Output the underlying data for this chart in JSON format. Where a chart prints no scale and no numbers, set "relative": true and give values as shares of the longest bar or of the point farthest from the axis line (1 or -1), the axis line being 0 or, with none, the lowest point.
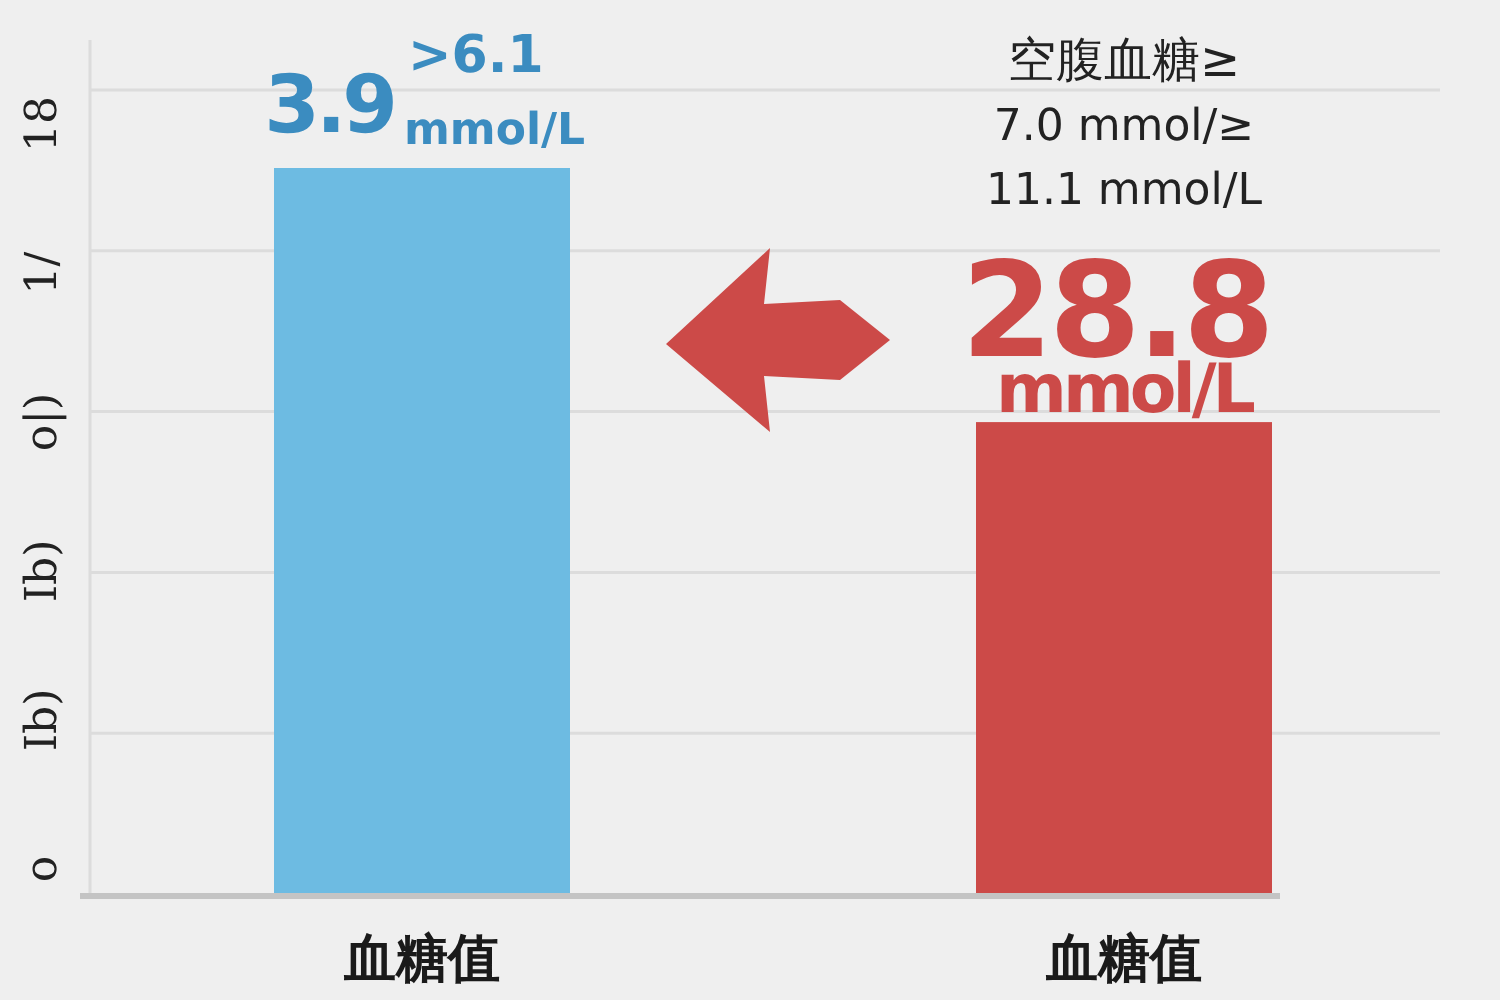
{
  "chart_data": {
    "type": "bar",
    "relative": true,
    "categories": [
      "血糖值",
      "血糖值"
    ],
    "values": [
      1,
      0.65
    ],
    "colors": [
      "#6dbbe2",
      "#cc4a48"
    ],
    "annotations": [
      "3.9",
      ">6.1",
      "mmol/L",
      "空腹血糖≥",
      "7.0 mmol/≥",
      "11.1 mmol/L",
      "28.8",
      "mmol/L",
      "18",
      "1/",
      "o|)",
      "Ib)",
      "Ib)",
      "o"
    ],
    "grid": true
  }
}
